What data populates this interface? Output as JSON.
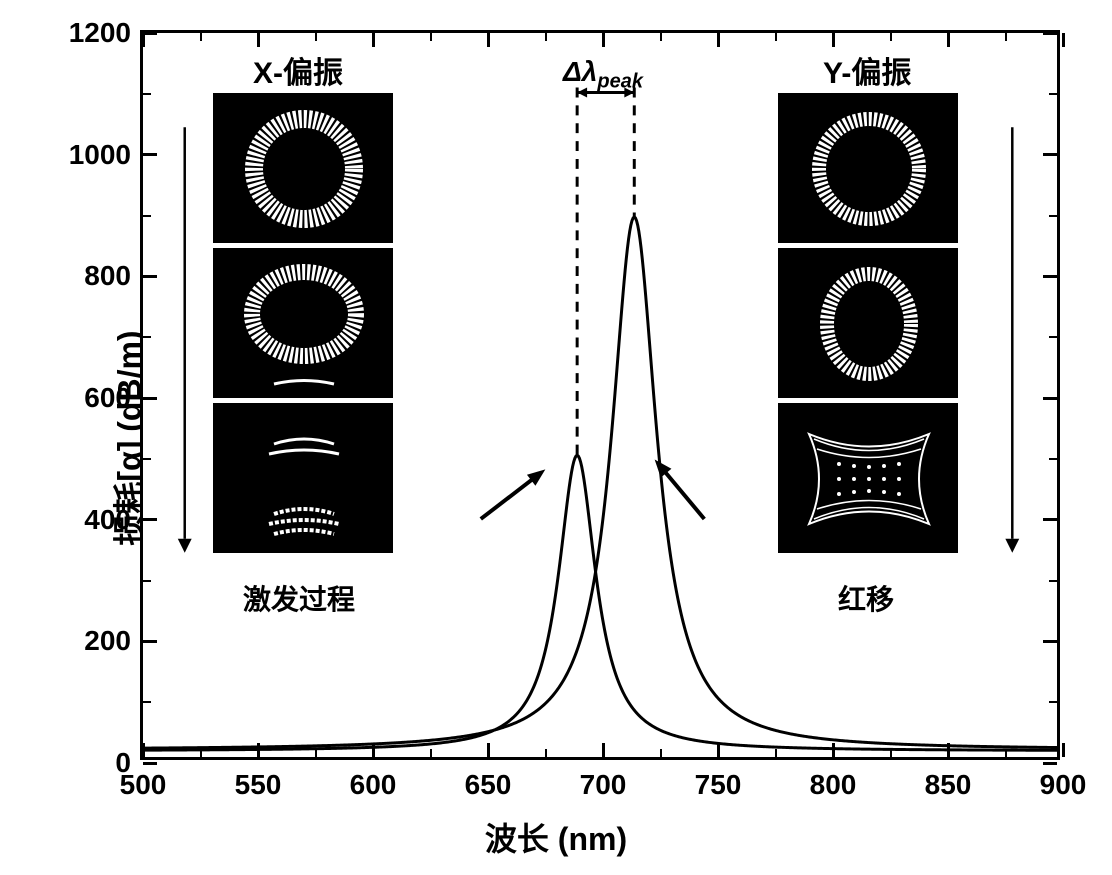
{
  "chart": {
    "type": "line",
    "xlabel": "波长 (nm)",
    "ylabel": "损耗[α] (dB/m)",
    "xlim": [
      500,
      900
    ],
    "ylim": [
      0,
      1200
    ],
    "xtick_step": 50,
    "ytick_step": 200,
    "x_minor_count": 1,
    "y_minor_count": 1,
    "line_color": "#000000",
    "line_width": 3,
    "background_color": "#ffffff",
    "border_color": "#000000",
    "label_fontsize": 32,
    "tick_fontsize": 28,
    "series": [
      {
        "name": "X-polarization",
        "peak_x": 690,
        "peak_y": 500,
        "width": 10,
        "baseline": 10
      },
      {
        "name": "Y-polarization",
        "peak_x": 715,
        "peak_y": 895,
        "width": 12,
        "baseline": 12
      }
    ],
    "annotations": {
      "left_title": "X-偏振",
      "right_title": "Y-偏振",
      "delta": "Δλ",
      "delta_sub": "peak",
      "left_proc": "激发过程",
      "right_proc": "红移",
      "inset_bg": "#000000",
      "inset_fg": "#ffffff"
    },
    "insets": {
      "left": [
        {
          "type": "ring",
          "aspect": 1.0
        },
        {
          "type": "ring-squash",
          "aspect": 0.85
        },
        {
          "type": "arcs",
          "aspect": 1.0
        }
      ],
      "right": [
        {
          "type": "ring",
          "aspect": 1.0
        },
        {
          "type": "ring-tall",
          "aspect": 1.1
        },
        {
          "type": "grid-distort",
          "aspect": 1.0
        }
      ]
    }
  }
}
